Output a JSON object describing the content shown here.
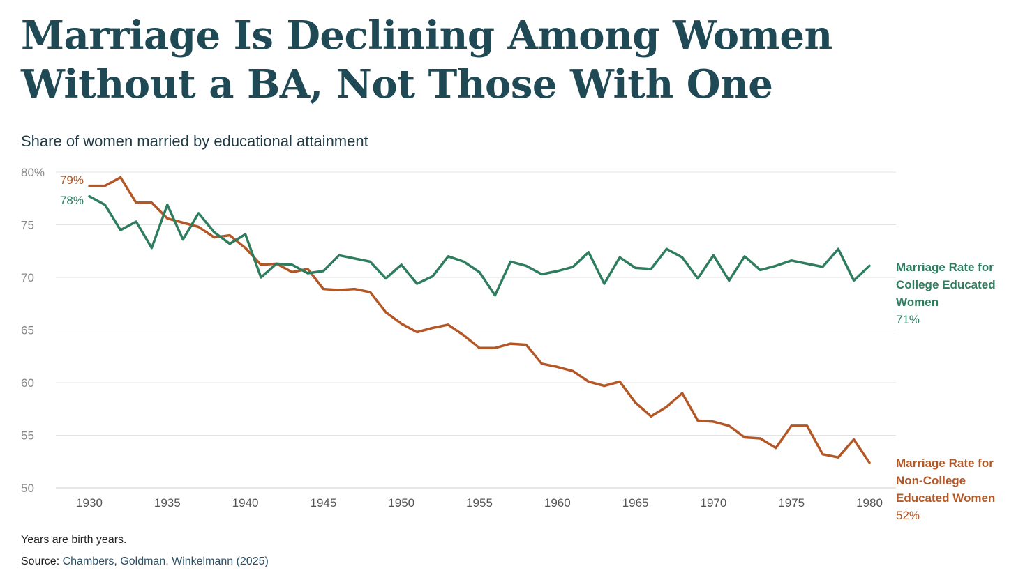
{
  "title": "Marriage Is Declining Among Women Without a BA, Not Those With One",
  "subtitle": "Share of women married by educational attainment",
  "footnote": "Years are birth years.",
  "source": {
    "prefix": "Source: ",
    "text": "Chambers, Goldman, Winkelmann (2025)"
  },
  "colors": {
    "college": "#2e7d5f",
    "noncollege": "#b35726",
    "grid": "#e3e3e3",
    "tick": "#888888",
    "title": "#1f4a55"
  },
  "labels": {
    "college": {
      "name": "Marriage Rate for College Educated Women",
      "end_value": "71%",
      "start_value": "78%"
    },
    "noncollege": {
      "name": "Marriage Rate for Non-College Educated Women",
      "end_value": "52%",
      "start_value": "79%"
    }
  },
  "chart_data": {
    "type": "line",
    "x": [
      1930,
      1931,
      1932,
      1933,
      1934,
      1935,
      1936,
      1937,
      1938,
      1939,
      1940,
      1941,
      1942,
      1943,
      1944,
      1945,
      1946,
      1947,
      1948,
      1949,
      1950,
      1951,
      1952,
      1953,
      1954,
      1955,
      1956,
      1957,
      1958,
      1959,
      1960,
      1961,
      1962,
      1963,
      1964,
      1965,
      1966,
      1967,
      1968,
      1969,
      1970,
      1971,
      1972,
      1973,
      1974,
      1975,
      1976,
      1977,
      1978,
      1979,
      1980
    ],
    "xticks": [
      1930,
      1935,
      1940,
      1945,
      1950,
      1955,
      1960,
      1965,
      1970,
      1975,
      1980
    ],
    "yticks": [
      50,
      55,
      60,
      65,
      70,
      75,
      80
    ],
    "ytick_labels": [
      "50",
      "55",
      "60",
      "65",
      "70",
      "75",
      "80%"
    ],
    "ylim": [
      50,
      80
    ],
    "xlim": [
      1930,
      1980
    ],
    "grid": true,
    "series": [
      {
        "key": "noncollege",
        "name": "Marriage Rate for Non-College Educated Women",
        "values": [
          78.7,
          78.7,
          79.5,
          77.1,
          77.1,
          75.6,
          75.2,
          74.8,
          73.8,
          74.0,
          72.8,
          71.2,
          71.3,
          70.5,
          70.8,
          68.9,
          68.8,
          68.9,
          68.6,
          66.7,
          65.6,
          64.8,
          65.2,
          65.5,
          64.5,
          63.3,
          63.3,
          63.7,
          63.6,
          61.8,
          61.5,
          61.1,
          60.1,
          59.7,
          60.1,
          58.1,
          56.8,
          57.7,
          59.0,
          56.4,
          56.3,
          55.9,
          54.8,
          54.7,
          53.8,
          55.9,
          55.9,
          53.2,
          52.9,
          54.6,
          52.4
        ]
      },
      {
        "key": "college",
        "name": "Marriage Rate for College Educated Women",
        "values": [
          77.7,
          76.9,
          74.5,
          75.3,
          72.8,
          76.9,
          73.6,
          76.1,
          74.3,
          73.2,
          74.1,
          70.0,
          71.3,
          71.2,
          70.4,
          70.6,
          72.1,
          71.8,
          71.5,
          69.9,
          71.2,
          69.4,
          70.1,
          72.0,
          71.5,
          70.5,
          68.3,
          71.5,
          71.1,
          70.3,
          70.6,
          71.0,
          72.4,
          69.4,
          71.9,
          70.9,
          70.8,
          72.7,
          71.9,
          69.9,
          72.1,
          69.7,
          72.0,
          70.7,
          71.1,
          71.6,
          71.3,
          71.0,
          72.7,
          69.7,
          71.1
        ]
      }
    ]
  }
}
